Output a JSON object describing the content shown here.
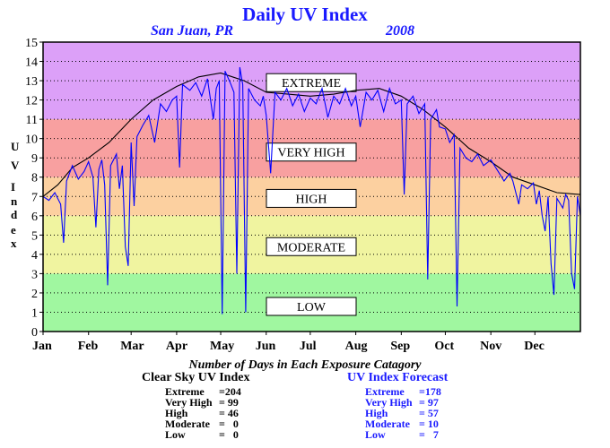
{
  "chart_data": {
    "type": "line",
    "title": "Daily UV Index",
    "subtitle_location": "San Juan, PR",
    "subtitle_year": "2008",
    "ylabel": "UV Index",
    "ylim": [
      0,
      15
    ],
    "yticks": [
      0,
      1,
      2,
      3,
      4,
      5,
      6,
      7,
      8,
      9,
      10,
      11,
      12,
      13,
      14,
      15
    ],
    "xlim_days": [
      0,
      366
    ],
    "month_labels": [
      "Jan",
      "Feb",
      "Mar",
      "Apr",
      "May",
      "Jun",
      "Jul",
      "Aug",
      "Sep",
      "Oct",
      "Nov",
      "Dec"
    ],
    "month_start_days": [
      0,
      31,
      60,
      91,
      121,
      152,
      182,
      213,
      244,
      274,
      305,
      335
    ],
    "bands": [
      {
        "label": "LOW",
        "from": 0,
        "to": 3,
        "color": "#a0f7a0",
        "label_y": 1.3
      },
      {
        "label": "MODERATE",
        "from": 3,
        "to": 6,
        "color": "#f0f4a0",
        "label_y": 4.4
      },
      {
        "label": "HIGH",
        "from": 6,
        "to": 8,
        "color": "#fcd0a0",
        "label_y": 6.9
      },
      {
        "label": "VERY HIGH",
        "from": 8,
        "to": 11,
        "color": "#f8a0a0",
        "label_y": 9.3
      },
      {
        "label": "EXTREME",
        "from": 11,
        "to": 15,
        "color": "#dca0f8",
        "label_y": 12.9
      }
    ],
    "grid": true,
    "series": [
      {
        "name": "Clear Sky UV Index",
        "color": "#000000",
        "points": [
          [
            0,
            7.0
          ],
          [
            10,
            7.6
          ],
          [
            20,
            8.5
          ],
          [
            31,
            9.0
          ],
          [
            45,
            9.8
          ],
          [
            60,
            11.0
          ],
          [
            75,
            12.0
          ],
          [
            91,
            12.7
          ],
          [
            106,
            13.2
          ],
          [
            121,
            13.4
          ],
          [
            137,
            13.0
          ],
          [
            152,
            12.4
          ],
          [
            167,
            12.3
          ],
          [
            182,
            12.2
          ],
          [
            198,
            12.3
          ],
          [
            213,
            12.5
          ],
          [
            229,
            12.6
          ],
          [
            244,
            12.2
          ],
          [
            259,
            11.5
          ],
          [
            274,
            10.6
          ],
          [
            290,
            9.5
          ],
          [
            305,
            8.8
          ],
          [
            320,
            8.0
          ],
          [
            335,
            7.6
          ],
          [
            350,
            7.2
          ],
          [
            366,
            7.1
          ]
        ]
      },
      {
        "name": "UV Index Forecast",
        "color": "#0000ff",
        "points": [
          [
            0,
            7.0
          ],
          [
            4,
            6.8
          ],
          [
            8,
            7.2
          ],
          [
            12,
            6.6
          ],
          [
            14,
            4.6
          ],
          [
            16,
            7.8
          ],
          [
            20,
            8.6
          ],
          [
            24,
            7.9
          ],
          [
            28,
            8.3
          ],
          [
            31,
            8.8
          ],
          [
            34,
            8.0
          ],
          [
            36,
            5.4
          ],
          [
            38,
            8.4
          ],
          [
            40,
            8.9
          ],
          [
            42,
            7.6
          ],
          [
            44,
            2.4
          ],
          [
            46,
            8.6
          ],
          [
            50,
            9.2
          ],
          [
            52,
            7.4
          ],
          [
            54,
            8.6
          ],
          [
            56,
            4.4
          ],
          [
            58,
            3.4
          ],
          [
            60,
            9.8
          ],
          [
            62,
            6.5
          ],
          [
            64,
            10.1
          ],
          [
            68,
            10.7
          ],
          [
            72,
            11.2
          ],
          [
            76,
            9.8
          ],
          [
            80,
            11.8
          ],
          [
            84,
            11.4
          ],
          [
            88,
            12.0
          ],
          [
            91,
            12.2
          ],
          [
            93,
            8.5
          ],
          [
            95,
            12.8
          ],
          [
            100,
            12.5
          ],
          [
            104,
            12.9
          ],
          [
            108,
            12.2
          ],
          [
            112,
            13.1
          ],
          [
            116,
            11.0
          ],
          [
            118,
            12.6
          ],
          [
            120,
            13.0
          ],
          [
            122,
            0.9
          ],
          [
            124,
            13.5
          ],
          [
            128,
            12.8
          ],
          [
            130,
            12.4
          ],
          [
            132,
            3.0
          ],
          [
            134,
            13.7
          ],
          [
            136,
            12.8
          ],
          [
            138,
            1.0
          ],
          [
            140,
            12.6
          ],
          [
            144,
            12.0
          ],
          [
            148,
            11.7
          ],
          [
            150,
            12.2
          ],
          [
            152,
            11.2
          ],
          [
            155,
            8.2
          ],
          [
            158,
            12.4
          ],
          [
            162,
            12.0
          ],
          [
            166,
            12.6
          ],
          [
            170,
            11.7
          ],
          [
            174,
            12.3
          ],
          [
            178,
            11.4
          ],
          [
            182,
            12.1
          ],
          [
            186,
            11.8
          ],
          [
            190,
            12.6
          ],
          [
            194,
            11.1
          ],
          [
            198,
            12.2
          ],
          [
            202,
            11.8
          ],
          [
            206,
            12.6
          ],
          [
            210,
            11.7
          ],
          [
            213,
            12.2
          ],
          [
            216,
            10.6
          ],
          [
            220,
            12.4
          ],
          [
            224,
            12.0
          ],
          [
            228,
            12.5
          ],
          [
            232,
            11.4
          ],
          [
            236,
            12.6
          ],
          [
            240,
            11.8
          ],
          [
            244,
            12.0
          ],
          [
            246,
            7.1
          ],
          [
            248,
            11.8
          ],
          [
            252,
            12.2
          ],
          [
            256,
            11.3
          ],
          [
            260,
            11.8
          ],
          [
            262,
            2.7
          ],
          [
            264,
            11.0
          ],
          [
            268,
            11.5
          ],
          [
            270,
            10.6
          ],
          [
            274,
            10.5
          ],
          [
            277,
            9.8
          ],
          [
            280,
            10.2
          ],
          [
            282,
            1.3
          ],
          [
            284,
            9.5
          ],
          [
            288,
            9.0
          ],
          [
            292,
            8.8
          ],
          [
            296,
            9.2
          ],
          [
            300,
            8.6
          ],
          [
            305,
            8.9
          ],
          [
            310,
            8.3
          ],
          [
            314,
            7.8
          ],
          [
            318,
            8.2
          ],
          [
            320,
            7.8
          ],
          [
            324,
            6.6
          ],
          [
            326,
            7.6
          ],
          [
            330,
            7.4
          ],
          [
            334,
            7.7
          ],
          [
            336,
            6.6
          ],
          [
            338,
            7.3
          ],
          [
            340,
            6.0
          ],
          [
            342,
            5.2
          ],
          [
            344,
            7.0
          ],
          [
            346,
            3.5
          ],
          [
            348,
            1.9
          ],
          [
            350,
            6.9
          ],
          [
            354,
            6.4
          ],
          [
            356,
            7.1
          ],
          [
            358,
            6.8
          ],
          [
            360,
            3.0
          ],
          [
            362,
            2.2
          ],
          [
            364,
            7.0
          ],
          [
            366,
            6.0
          ]
        ]
      }
    ]
  },
  "caption": "Number of Days in Each Exposure Catagory",
  "clear_sky": {
    "heading": "Clear Sky UV Index",
    "rows": [
      {
        "label": "Extreme",
        "value": "=204"
      },
      {
        "label": "Very High",
        "value": "= 99"
      },
      {
        "label": "High",
        "value": "= 46"
      },
      {
        "label": "Moderate",
        "value": "=   0"
      },
      {
        "label": "Low",
        "value": "=   0"
      }
    ]
  },
  "forecast": {
    "heading": "UV Index Forecast",
    "rows": [
      {
        "label": "Extreme",
        "value": "=178"
      },
      {
        "label": "Very High",
        "value": "= 97"
      },
      {
        "label": "High",
        "value": "= 57"
      },
      {
        "label": "Moderate",
        "value": "= 10"
      },
      {
        "label": "Low",
        "value": "=   7"
      }
    ]
  }
}
